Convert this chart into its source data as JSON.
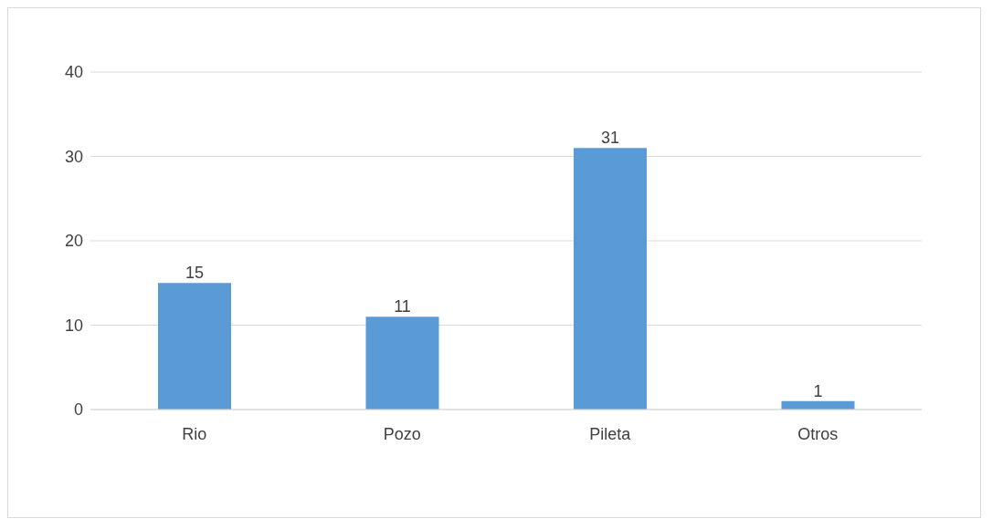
{
  "chart_data": {
    "type": "bar",
    "categories": [
      "Rio",
      "Pozo",
      "Pileta",
      "Otros"
    ],
    "values": [
      15,
      11,
      31,
      1
    ],
    "color": "#5b9bd5",
    "ylim": [
      0,
      40
    ],
    "yticks": [
      0,
      10,
      20,
      30,
      40
    ],
    "grid": "y",
    "data_labels": true
  }
}
